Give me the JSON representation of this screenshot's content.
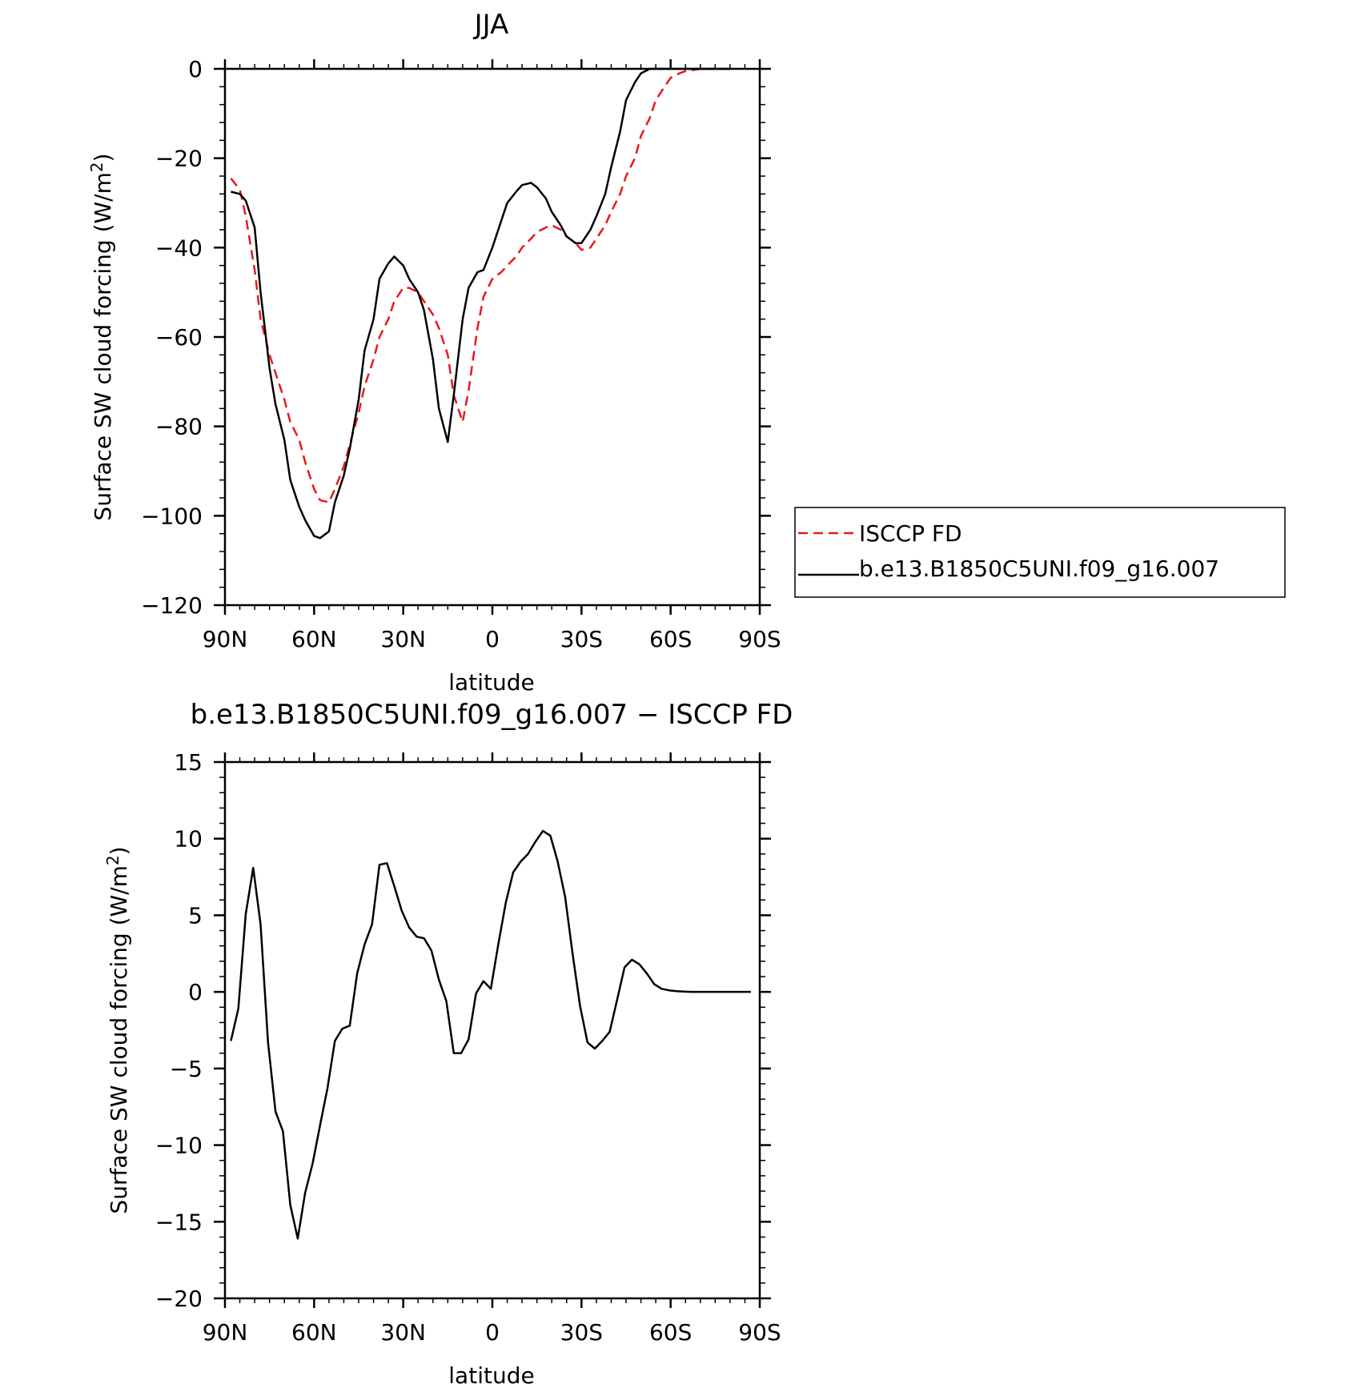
{
  "chart_data": [
    {
      "type": "line",
      "title": "JJA",
      "xlabel": "latitude",
      "ylabel": "Surface SW cloud forcing (W/m",
      "ylabel_sup": "2",
      "ylabel_close": ")",
      "xlim": [
        90,
        -90
      ],
      "ylim": [
        -120,
        0
      ],
      "x_ticks": [
        {
          "value": 90,
          "label": "90N"
        },
        {
          "value": 60,
          "label": "60N"
        },
        {
          "value": 30,
          "label": "30N"
        },
        {
          "value": 0,
          "label": "0"
        },
        {
          "value": -30,
          "label": "30S"
        },
        {
          "value": -60,
          "label": "60S"
        },
        {
          "value": -90,
          "label": "90S"
        }
      ],
      "y_ticks": [
        {
          "value": 0,
          "label": "0"
        },
        {
          "value": -20,
          "label": "−20"
        },
        {
          "value": -40,
          "label": "−40"
        },
        {
          "value": -60,
          "label": "−60"
        },
        {
          "value": -80,
          "label": "−80"
        },
        {
          "value": -100,
          "label": "−100"
        },
        {
          "value": -120,
          "label": "−120"
        }
      ],
      "grid": false,
      "legend": "right",
      "series": [
        {
          "name": "ISCCP FD",
          "color": "#e8191c",
          "dash": "dashed",
          "x": [
            88,
            85,
            83,
            80,
            78,
            75,
            73,
            70,
            68,
            65,
            63,
            60,
            58,
            55,
            53,
            50,
            48,
            45,
            43,
            40,
            38,
            35,
            33,
            30,
            28,
            25,
            23,
            20,
            18,
            15,
            13,
            10,
            8,
            5,
            3,
            0,
            -3,
            -5,
            -8,
            -10,
            -13,
            -15,
            -18,
            -20,
            -23,
            -25,
            -28,
            -30,
            -33,
            -35,
            -38,
            -40,
            -43,
            -45,
            -48,
            -50,
            -53,
            -55,
            -58,
            -60,
            -63,
            -65,
            -68,
            -70,
            -73,
            -75,
            -78,
            -80
          ],
          "y": [
            -24.5,
            -27,
            -33,
            -45,
            -56,
            -64,
            -68,
            -74,
            -79,
            -83,
            -88,
            -94,
            -96.5,
            -97,
            -94,
            -89,
            -84,
            -77,
            -71,
            -65,
            -60,
            -56,
            -52,
            -49,
            -49,
            -50,
            -52,
            -55,
            -58,
            -64,
            -73,
            -79,
            -72,
            -58,
            -51,
            -47,
            -45.5,
            -44,
            -42,
            -40,
            -38,
            -36.5,
            -35.5,
            -35,
            -36,
            -37.5,
            -39,
            -40.5,
            -40,
            -38,
            -35,
            -32,
            -28,
            -24,
            -20,
            -15,
            -11,
            -7,
            -4,
            -2,
            -1,
            -0.5,
            -0.2,
            0,
            0,
            0,
            0,
            0
          ]
        },
        {
          "name": "b.e13.B1850C5UNI.f09_g16.007",
          "color": "#000000",
          "dash": "solid",
          "x": [
            88,
            85,
            83,
            80,
            78,
            75,
            73,
            70,
            68,
            65,
            63,
            60,
            58,
            55,
            53,
            50,
            48,
            45,
            43,
            40,
            38,
            35,
            33,
            30,
            28,
            25,
            23,
            20,
            18,
            15,
            13,
            10,
            8,
            5,
            3,
            0,
            -3,
            -5,
            -8,
            -10,
            -13,
            -15,
            -18,
            -20,
            -23,
            -25,
            -28,
            -30,
            -33,
            -35,
            -38,
            -40,
            -43,
            -45,
            -48,
            -50,
            -53,
            -55,
            -58,
            -60,
            -63,
            -65,
            -68,
            -70,
            -73,
            -75,
            -78,
            -80
          ],
          "y": [
            -27.5,
            -28,
            -29.5,
            -35.5,
            -50,
            -67,
            -75,
            -83,
            -92,
            -98,
            -101,
            -104.5,
            -105,
            -103.5,
            -97,
            -91,
            -85,
            -74,
            -63,
            -56,
            -47,
            -43.5,
            -42,
            -44,
            -47,
            -50,
            -54,
            -65,
            -76,
            -83.5,
            -73,
            -56,
            -49,
            -45.5,
            -45,
            -40,
            -34,
            -30,
            -27.5,
            -26,
            -25.5,
            -26.5,
            -29,
            -32,
            -35,
            -37.5,
            -39,
            -39,
            -36,
            -33,
            -28,
            -22,
            -14,
            -7,
            -3,
            -1,
            0,
            0,
            0,
            0,
            0,
            0,
            0,
            0,
            0,
            0,
            0,
            0
          ]
        }
      ]
    },
    {
      "type": "line",
      "title": "b.e13.B1850C5UNI.f09_g16.007 − ISCCP FD",
      "xlabel": "latitude",
      "ylabel": "Surface SW cloud forcing (W/m",
      "ylabel_sup": "2",
      "ylabel_close": ")",
      "xlim": [
        90,
        -90
      ],
      "ylim": [
        -20,
        15
      ],
      "x_ticks": [
        {
          "value": 90,
          "label": "90N"
        },
        {
          "value": 60,
          "label": "60N"
        },
        {
          "value": 30,
          "label": "30N"
        },
        {
          "value": 0,
          "label": "0"
        },
        {
          "value": -30,
          "label": "30S"
        },
        {
          "value": -60,
          "label": "60S"
        },
        {
          "value": -90,
          "label": "90S"
        }
      ],
      "y_ticks": [
        {
          "value": 15,
          "label": "15"
        },
        {
          "value": 10,
          "label": "10"
        },
        {
          "value": 5,
          "label": "5"
        },
        {
          "value": 0,
          "label": "0"
        },
        {
          "value": -5,
          "label": "−5"
        },
        {
          "value": -10,
          "label": "−10"
        },
        {
          "value": -15,
          "label": "−15"
        },
        {
          "value": -20,
          "label": "−20"
        }
      ],
      "grid": false,
      "series": [
        {
          "color": "#000000",
          "dash": "solid",
          "x": [
            88,
            85.5,
            83,
            80.5,
            78,
            75.5,
            73,
            70.5,
            68,
            65.5,
            63,
            60.5,
            58,
            55.5,
            53,
            50.5,
            48,
            45.5,
            43,
            40.5,
            38,
            35.5,
            33,
            30.5,
            28,
            25.5,
            23,
            20.5,
            18,
            15.5,
            13,
            10.5,
            8,
            5.5,
            3,
            0.5,
            -2,
            -4.5,
            -7,
            -9.5,
            -12,
            -14.5,
            -17,
            -19.5,
            -22,
            -24.5,
            -27,
            -29.5,
            -32,
            -34.5,
            -37,
            -39.5,
            -42,
            -44.5,
            -47,
            -49.5,
            -52,
            -54.5,
            -57,
            -59.5,
            -62,
            -64.5,
            -67,
            -69.5,
            -72,
            -74.5,
            -77,
            -79.5,
            -82,
            -84.5,
            -87
          ],
          "y": [
            -3.2,
            -1.1,
            5.1,
            8.1,
            4.4,
            -3.3,
            -7.8,
            -9.1,
            -13.9,
            -16.1,
            -13.1,
            -11.2,
            -8.7,
            -6.3,
            -3.2,
            -2.4,
            -2.2,
            1.2,
            3.1,
            4.4,
            8.3,
            8.4,
            6.9,
            5.3,
            4.2,
            3.6,
            3.5,
            2.7,
            0.8,
            -0.6,
            -4.0,
            -4.0,
            -3.1,
            -0.1,
            0.7,
            0.2,
            3.1,
            5.8,
            7.8,
            8.5,
            9.0,
            9.8,
            10.5,
            10.2,
            8.5,
            6.2,
            2.5,
            -0.9,
            -3.3,
            -3.7,
            -3.2,
            -2.6,
            -0.5,
            1.6,
            2.1,
            1.8,
            1.2,
            0.5,
            0.2,
            0.1,
            0.05,
            0.02,
            0,
            0,
            0,
            0,
            0,
            0,
            0,
            0,
            0
          ]
        }
      ]
    }
  ],
  "legend_entries": [
    "ISCCP FD",
    "b.e13.B1850C5UNI.f09_g16.007"
  ]
}
